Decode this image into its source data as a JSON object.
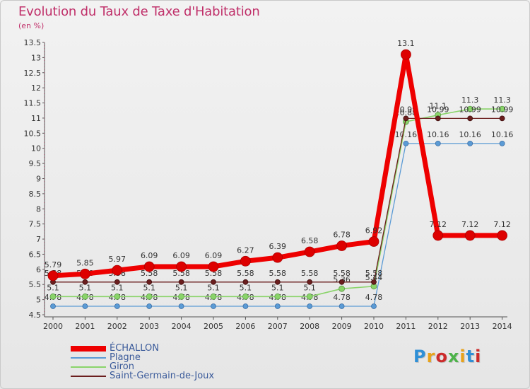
{
  "title": "Evolution du Taux de Taxe d'Habitation",
  "subtitle": "(en %)",
  "logo_text": "Proxiti",
  "logo_colors": [
    "#2f8fd6",
    "#e8a21a",
    "#cc2b2b",
    "#4db34a",
    "#e8a21a",
    "#2f8fd6",
    "#cc2b2b"
  ],
  "chart_data": {
    "type": "line",
    "x": [
      "2000",
      "2001",
      "2002",
      "2003",
      "2004",
      "2005",
      "2006",
      "2007",
      "2008",
      "2009",
      "2010",
      "2011",
      "2012",
      "2013",
      "2014"
    ],
    "ylim": [
      4.5,
      13.5
    ],
    "yticks": [
      "4.5",
      "5",
      "5.5",
      "6",
      "6.5",
      "7",
      "7.5",
      "8",
      "8.5",
      "9",
      "9.5",
      "10",
      "10.5",
      "11",
      "11.5",
      "12",
      "12.5",
      "13",
      "13.5"
    ],
    "grid": false,
    "legend_position": "bottom-left",
    "series": [
      {
        "name": "Plagne",
        "color": "#5b9bd5",
        "values": [
          4.78,
          4.78,
          4.78,
          4.78,
          4.78,
          4.78,
          4.78,
          4.78,
          4.78,
          4.78,
          4.78,
          10.16,
          10.16,
          10.16,
          10.16
        ],
        "labels": [
          "4.78",
          "4.78",
          "4.78",
          "4.78",
          "4.78",
          "4.78",
          "4.78",
          "4.78",
          "4.78",
          "4.78",
          "4.78",
          "10.16",
          "10.16",
          "10.16",
          "10.16"
        ]
      },
      {
        "name": "Giron",
        "color": "#8ad46a",
        "values": [
          5.1,
          5.1,
          5.1,
          5.1,
          5.1,
          5.1,
          5.1,
          5.1,
          5.1,
          5.36,
          5.44,
          10.88,
          11.1,
          11.3,
          11.3
        ],
        "labels": [
          "5.1",
          "5.1",
          "5.1",
          "5.1",
          "5.1",
          "5.1",
          "5.1",
          "5.1",
          "5.1",
          "5.36",
          "5.44",
          "10.88",
          "11.1",
          "11.3",
          "11.3"
        ]
      },
      {
        "name": "Saint-Germain-de-Joux",
        "color": "#6b1e1e",
        "values": [
          5.58,
          5.58,
          5.58,
          5.58,
          5.58,
          5.58,
          5.58,
          5.58,
          5.58,
          5.58,
          5.58,
          10.99,
          10.99,
          10.99,
          10.99
        ],
        "labels": [
          "5.58",
          "5.58",
          "5.58",
          "5.58",
          "5.58",
          "5.58",
          "5.58",
          "5.58",
          "5.58",
          "5.58",
          "5.58",
          "10.99",
          "10.99",
          "10.99",
          "10.99"
        ]
      },
      {
        "name": "ÉCHALLON",
        "color": "#ee0000",
        "values": [
          5.79,
          5.85,
          5.97,
          6.09,
          6.09,
          6.09,
          6.27,
          6.39,
          6.58,
          6.78,
          6.92,
          13.1,
          7.12,
          7.12,
          7.12
        ],
        "labels": [
          "5.79",
          "5.85",
          "5.97",
          "6.09",
          "6.09",
          "6.09",
          "6.27",
          "6.39",
          "6.58",
          "6.78",
          "6.92",
          "13.1",
          "7.12",
          "7.12",
          "7.12"
        ]
      }
    ],
    "legend": [
      "ÉCHALLON",
      "Plagne",
      "Giron",
      "Saint-Germain-de-Joux"
    ]
  }
}
